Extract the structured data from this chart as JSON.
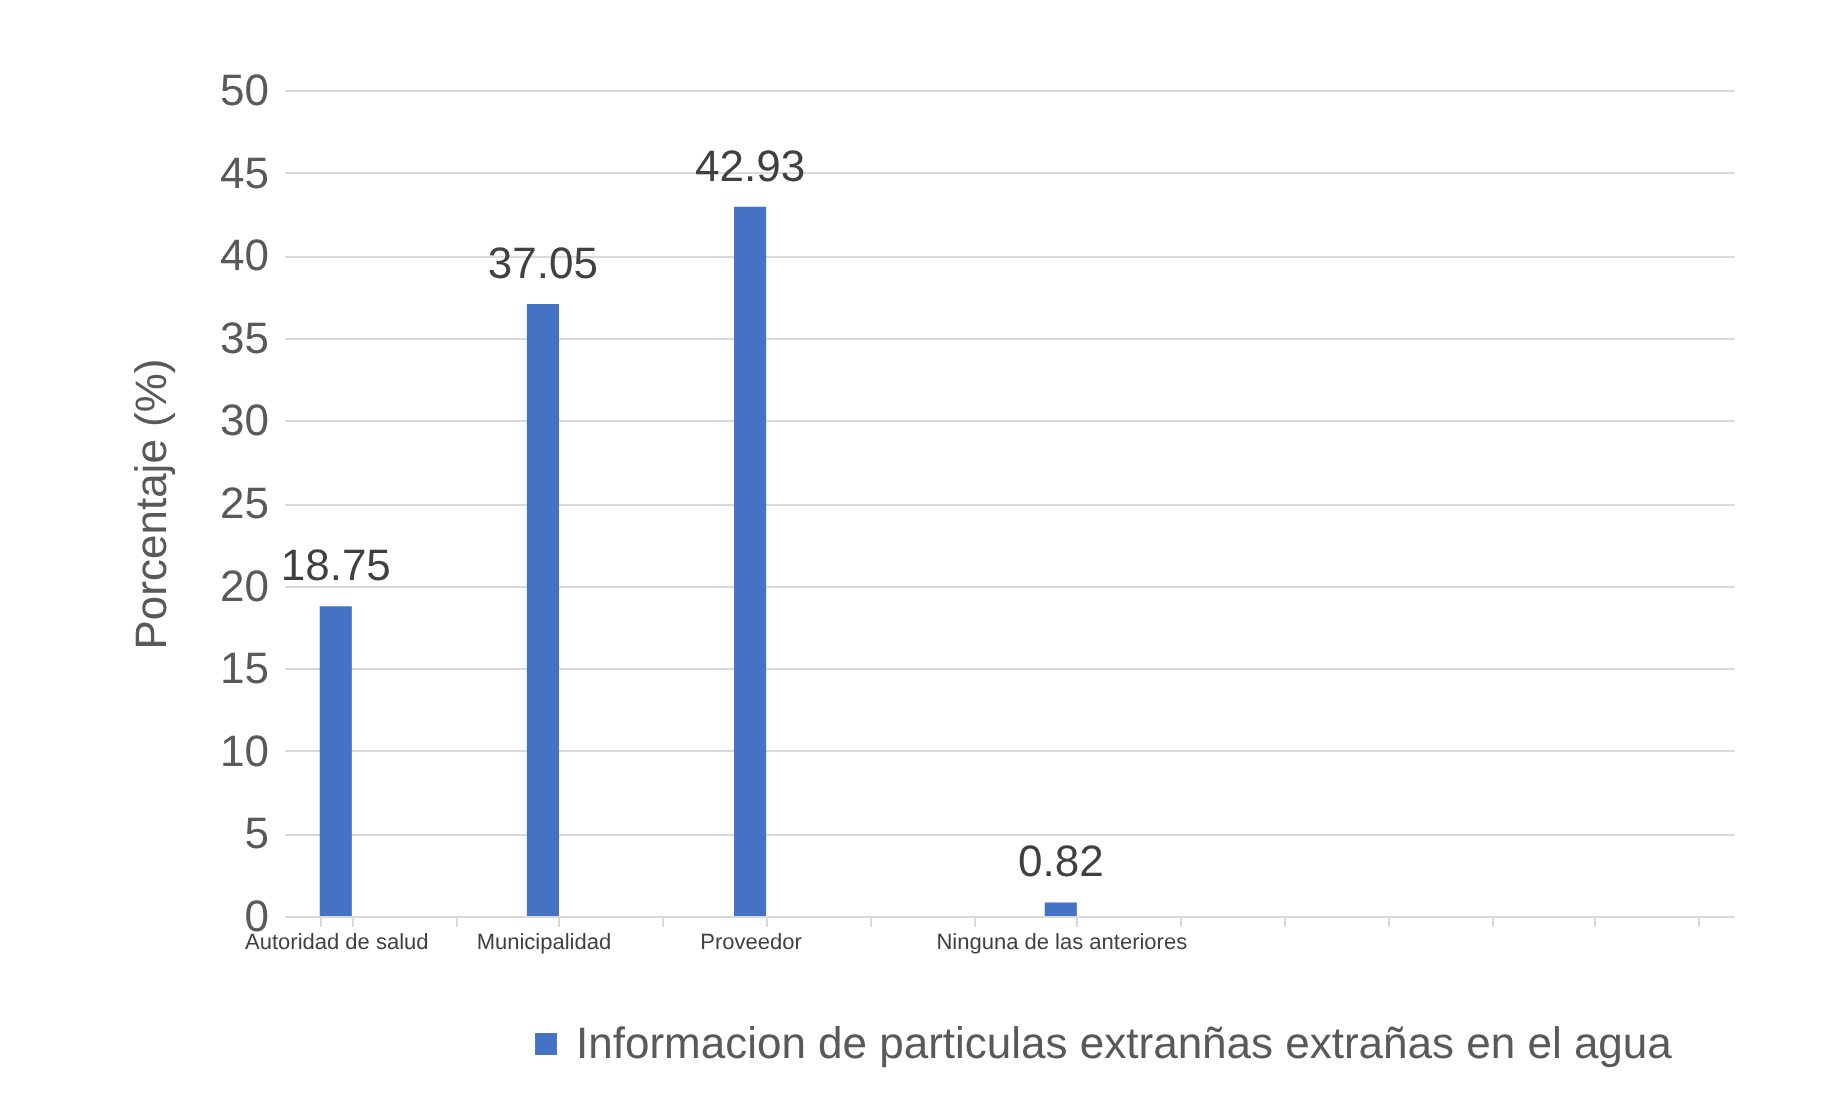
{
  "chart_data": {
    "type": "bar",
    "ylabel": "Porcentaje (%)",
    "categories": [
      "Autoridad de salud",
      null,
      "Municipalidad",
      null,
      "Proveedor",
      null,
      null,
      "Ninguna de las anteriores",
      null,
      null,
      null,
      null,
      null,
      null
    ],
    "series": [
      {
        "name": "Informacion de particulas extranñas extrañas en el agua",
        "color": "#4472c4",
        "values": [
          18.75,
          null,
          37.05,
          null,
          42.93,
          null,
          null,
          0.82,
          null,
          null,
          null,
          null,
          null,
          null
        ]
      }
    ],
    "ylim": [
      0,
      50
    ],
    "yticks": [
      0,
      5,
      10,
      15,
      20,
      25,
      30,
      35,
      40,
      45,
      50
    ],
    "grid": "y",
    "legend": "bottom",
    "data_labels": true
  }
}
